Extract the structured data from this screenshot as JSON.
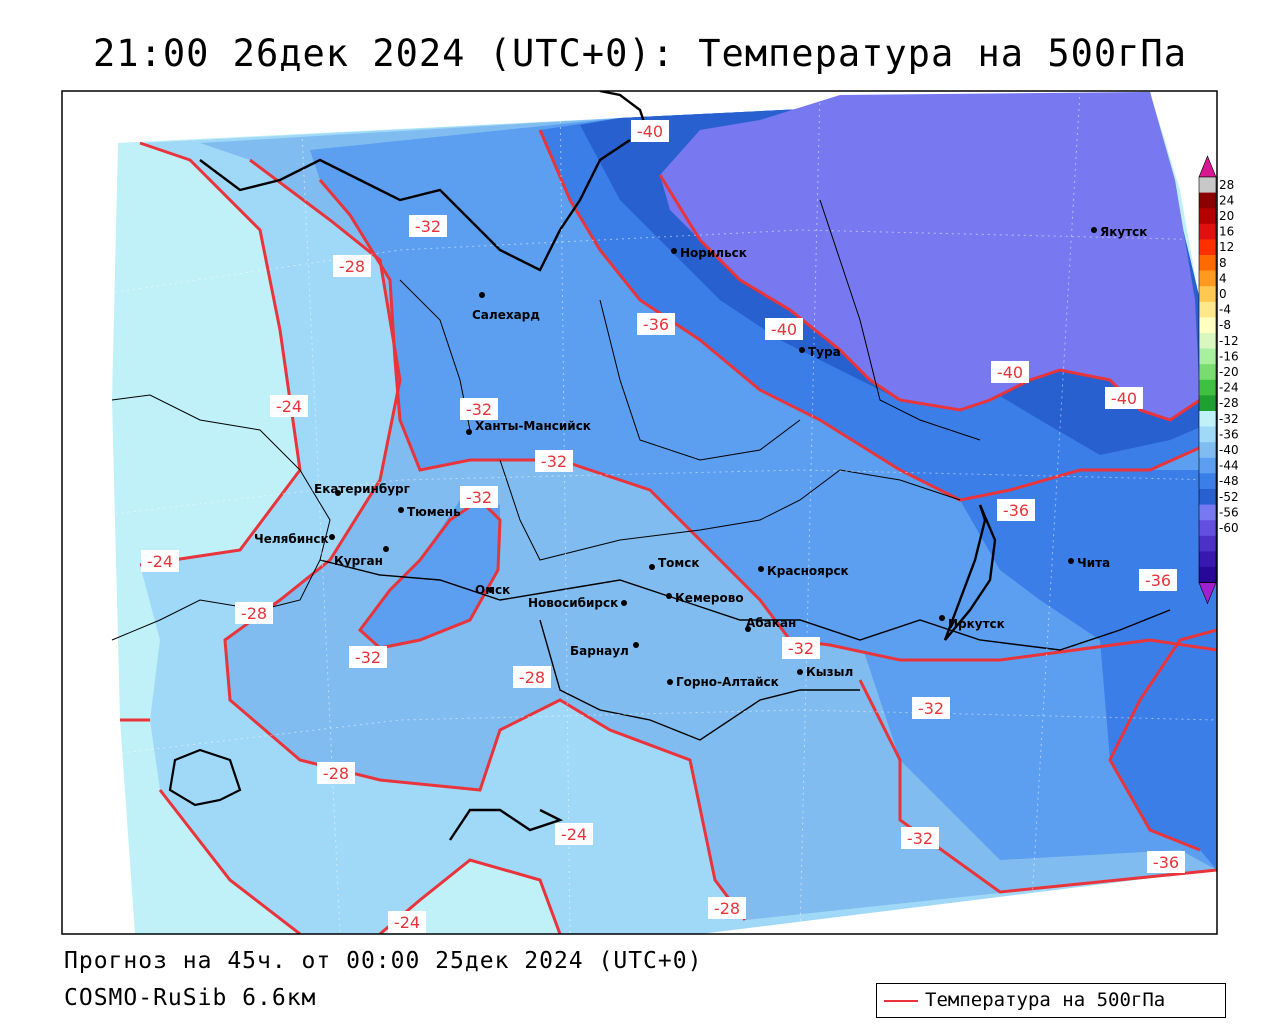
{
  "title": "21:00 26дек 2024 (UTC+0): Температура на 500гПа",
  "footer": {
    "forecast": "Прогноз на 45ч. от 00:00 25дек 2024 (UTC+0)",
    "model": "COSMO-RuSib 6.6км"
  },
  "legend": {
    "label": "Температура на 500гПа",
    "line_color": "#e8343a"
  },
  "colorbar": {
    "levels": [
      "28",
      "24",
      "20",
      "16",
      "12",
      "8",
      "4",
      "0",
      "-4",
      "-8",
      "-12",
      "-16",
      "-20",
      "-24",
      "-28",
      "-32",
      "-36",
      "-40",
      "-44",
      "-48",
      "-52",
      "-56",
      "-60"
    ],
    "colors": [
      "#c8c8c8",
      "#8b0000",
      "#b40000",
      "#e01010",
      "#ff3000",
      "#ff6a00",
      "#ff9a1e",
      "#ffc850",
      "#ffe88c",
      "#ffffc0",
      "#d8f8c0",
      "#a8f0a0",
      "#78dc70",
      "#40c040",
      "#20a030",
      "#c0f0f8",
      "#a0d8f8",
      "#80bcf0",
      "#5c9ef0",
      "#3c7ee8",
      "#2860d0",
      "#7878f0",
      "#6450e0",
      "#4c30c8",
      "#3818b0",
      "#280898"
    ],
    "top_arrow_color": "#d81890",
    "bottom_arrow_color": "#a020d0"
  },
  "cities": [
    {
      "name": "Якутск"
    },
    {
      "name": "Норильск"
    },
    {
      "name": "Салехард"
    },
    {
      "name": "Тура"
    },
    {
      "name": "Ханты-Мансийск"
    },
    {
      "name": "Екатеринбург"
    },
    {
      "name": "Тюмень"
    },
    {
      "name": "Челябинск"
    },
    {
      "name": "Курган"
    },
    {
      "name": "Омск"
    },
    {
      "name": "Томск"
    },
    {
      "name": "Новосибирск"
    },
    {
      "name": "Кемерово"
    },
    {
      "name": "Красноярск"
    },
    {
      "name": "Абакан"
    },
    {
      "name": "Барнаул"
    },
    {
      "name": "Горно-Алтайск"
    },
    {
      "name": "Кызыл"
    },
    {
      "name": "Иркутск"
    },
    {
      "name": "Чита"
    }
  ],
  "isotherm_labels": [
    "-40",
    "-32",
    "-28",
    "-36",
    "-40",
    "-40",
    "-40",
    "-24",
    "-32",
    "-32",
    "-32",
    "-24",
    "-28",
    "-32",
    "-28",
    "-36",
    "-36",
    "-32",
    "-32",
    "-28",
    "-24",
    "-32",
    "-36",
    "-24",
    "-28"
  ]
}
